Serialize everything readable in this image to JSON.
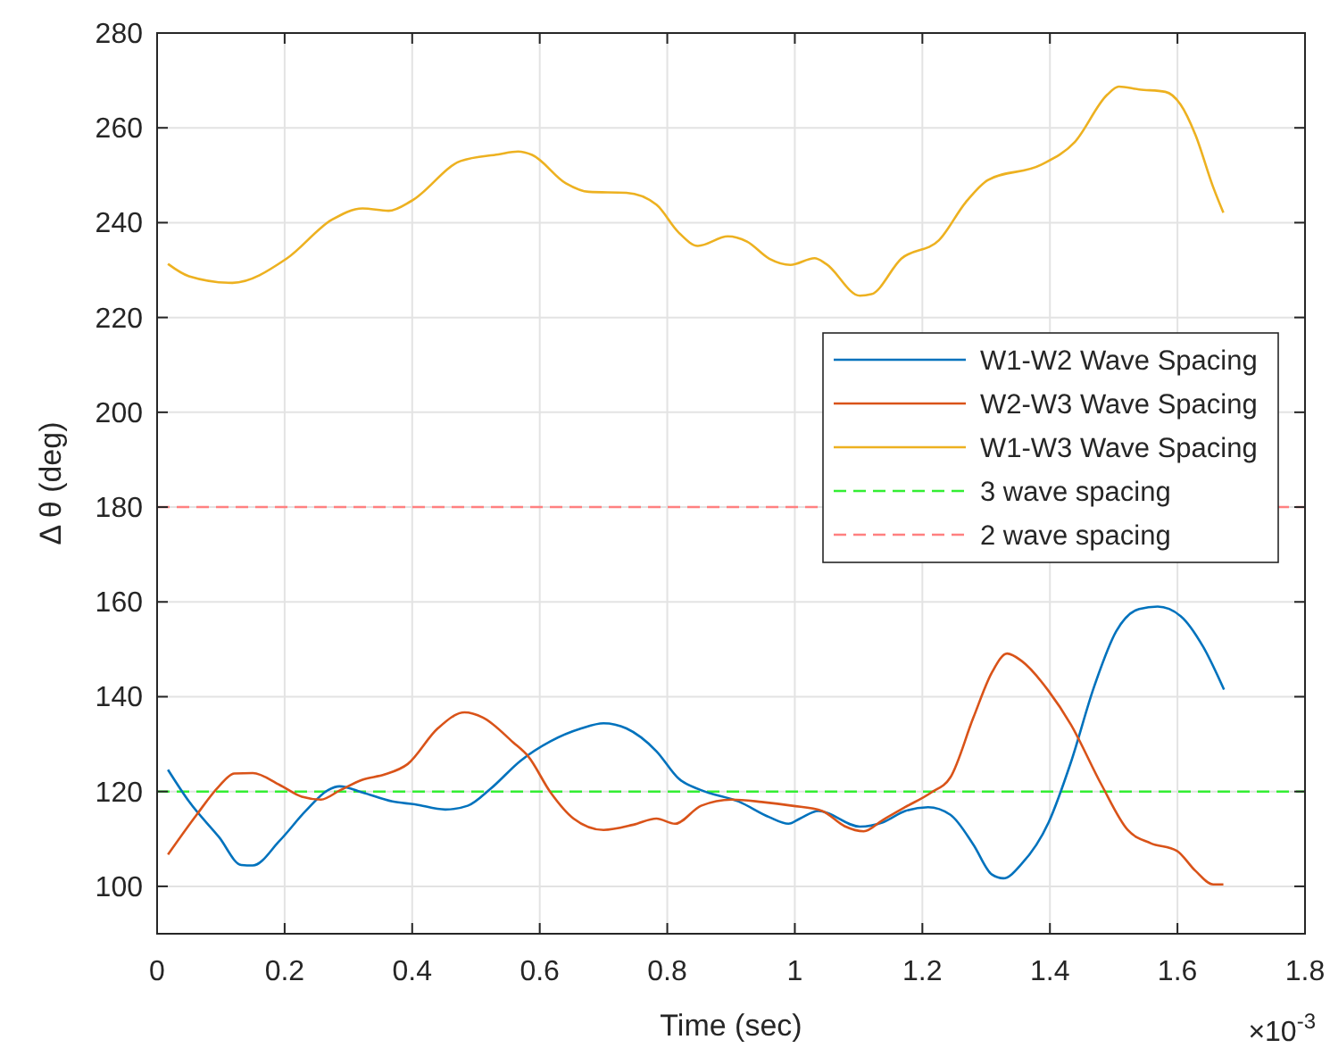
{
  "chart_data": {
    "type": "line",
    "xlabel": "Time (sec)",
    "ylabel": "Δ θ (deg)",
    "xlim": [
      0,
      1.8
    ],
    "ylim": [
      90,
      280
    ],
    "xticks": [
      0,
      0.2,
      0.4,
      0.6,
      0.8,
      1,
      1.2,
      1.4,
      1.6,
      1.8
    ],
    "yticks": [
      100,
      120,
      140,
      160,
      180,
      200,
      220,
      240,
      260,
      280
    ],
    "grid": true,
    "legend": "right",
    "line_style": "solid",
    "marker": "none",
    "annotations": [
      "×10$^{-3}$"
    ],
    "ref_lines": [
      {
        "axis": "y",
        "value": 120,
        "label": "3 wave spacing",
        "color": "#33ee33",
        "line_style": "dashed"
      },
      {
        "axis": "y",
        "value": 180,
        "label": "2 wave spacing",
        "color": "#ff8080",
        "line_style": "dashed"
      }
    ],
    "series": [
      {
        "name": "W1-W2 Wave Spacing",
        "color": "#0072bd",
        "x": [
          0.017,
          0.05,
          0.097,
          0.132,
          0.15,
          0.192,
          0.233,
          0.268,
          0.286,
          0.322,
          0.369,
          0.404,
          0.452,
          0.487,
          0.523,
          0.57,
          0.617,
          0.665,
          0.7,
          0.736,
          0.783,
          0.818,
          0.853,
          0.912,
          0.96,
          0.99,
          1.008,
          1.037,
          1.102,
          1.138,
          1.173,
          1.209,
          1.244,
          1.28,
          1.309,
          1.327,
          1.356,
          1.398,
          1.433,
          1.469,
          1.504,
          1.54,
          1.569,
          1.605,
          1.64,
          1.673
        ],
        "values": [
          124.6,
          117.9,
          110.4,
          104.5,
          104.4,
          109.6,
          115.9,
          120.3,
          121.1,
          119.8,
          117.9,
          117.3,
          116.2,
          117,
          120.6,
          126.5,
          130.6,
          133.3,
          134.4,
          133.3,
          128.5,
          122.7,
          120.3,
          117.9,
          114.6,
          113.2,
          114.3,
          115.9,
          112.6,
          113.5,
          115.9,
          116.7,
          115.1,
          108.8,
          102.5,
          101.7,
          104.8,
          113.5,
          126.2,
          142,
          153.8,
          158.5,
          159,
          157,
          150.6,
          141.5
        ]
      },
      {
        "name": "W2-W3 Wave Spacing",
        "color": "#d95319",
        "x": [
          0.017,
          0.062,
          0.097,
          0.121,
          0.15,
          0.192,
          0.227,
          0.257,
          0.286,
          0.322,
          0.357,
          0.393,
          0.44,
          0.482,
          0.511,
          0.558,
          0.582,
          0.617,
          0.653,
          0.7,
          0.747,
          0.783,
          0.812,
          0.853,
          0.901,
          0.948,
          0.996,
          1.043,
          1.078,
          1.108,
          1.138,
          1.173,
          1.214,
          1.244,
          1.28,
          1.309,
          1.333,
          1.356,
          1.398,
          1.433,
          1.481,
          1.522,
          1.558,
          1.599,
          1.628,
          1.656,
          1.672
        ],
        "values": [
          106.7,
          115.1,
          121.1,
          123.8,
          123.9,
          121.4,
          118.9,
          118.3,
          120.2,
          122.5,
          123.6,
          125.8,
          133.3,
          136.7,
          135.6,
          130.4,
          127.4,
          119.8,
          114.3,
          111.9,
          113,
          114.3,
          113.2,
          117,
          118.3,
          117.8,
          117,
          115.9,
          112.7,
          111.6,
          114,
          116.7,
          119.8,
          123,
          135.6,
          145.1,
          149.1,
          147.5,
          141.2,
          134.1,
          121.4,
          111.9,
          109.1,
          107.5,
          103.3,
          100.4,
          100.4
        ]
      },
      {
        "name": "W1-W3 Wave Spacing",
        "color": "#edb120",
        "x": [
          0.017,
          0.05,
          0.118,
          0.203,
          0.274,
          0.322,
          0.363,
          0.399,
          0.476,
          0.535,
          0.566,
          0.588,
          0.641,
          0.677,
          0.736,
          0.783,
          0.818,
          0.848,
          0.895,
          0.925,
          0.96,
          0.993,
          1.031,
          1.049,
          1.102,
          1.12,
          1.167,
          1.226,
          1.268,
          1.303,
          1.386,
          1.439,
          1.49,
          1.508,
          1.54,
          1.581,
          1.605,
          1.628,
          1.656,
          1.672
        ],
        "values": [
          231.3,
          228.7,
          227.3,
          232.4,
          240.6,
          243,
          242.5,
          244.6,
          253,
          254.4,
          255,
          254.3,
          248.3,
          246.5,
          246.3,
          243.8,
          237.9,
          235.1,
          237.1,
          236,
          232.4,
          231.1,
          232.5,
          231.3,
          224.6,
          224.9,
          232.4,
          236.3,
          244.3,
          249,
          252.2,
          257,
          267,
          268.7,
          268.1,
          267.6,
          264.9,
          258.6,
          247.5,
          242.1
        ]
      }
    ]
  }
}
